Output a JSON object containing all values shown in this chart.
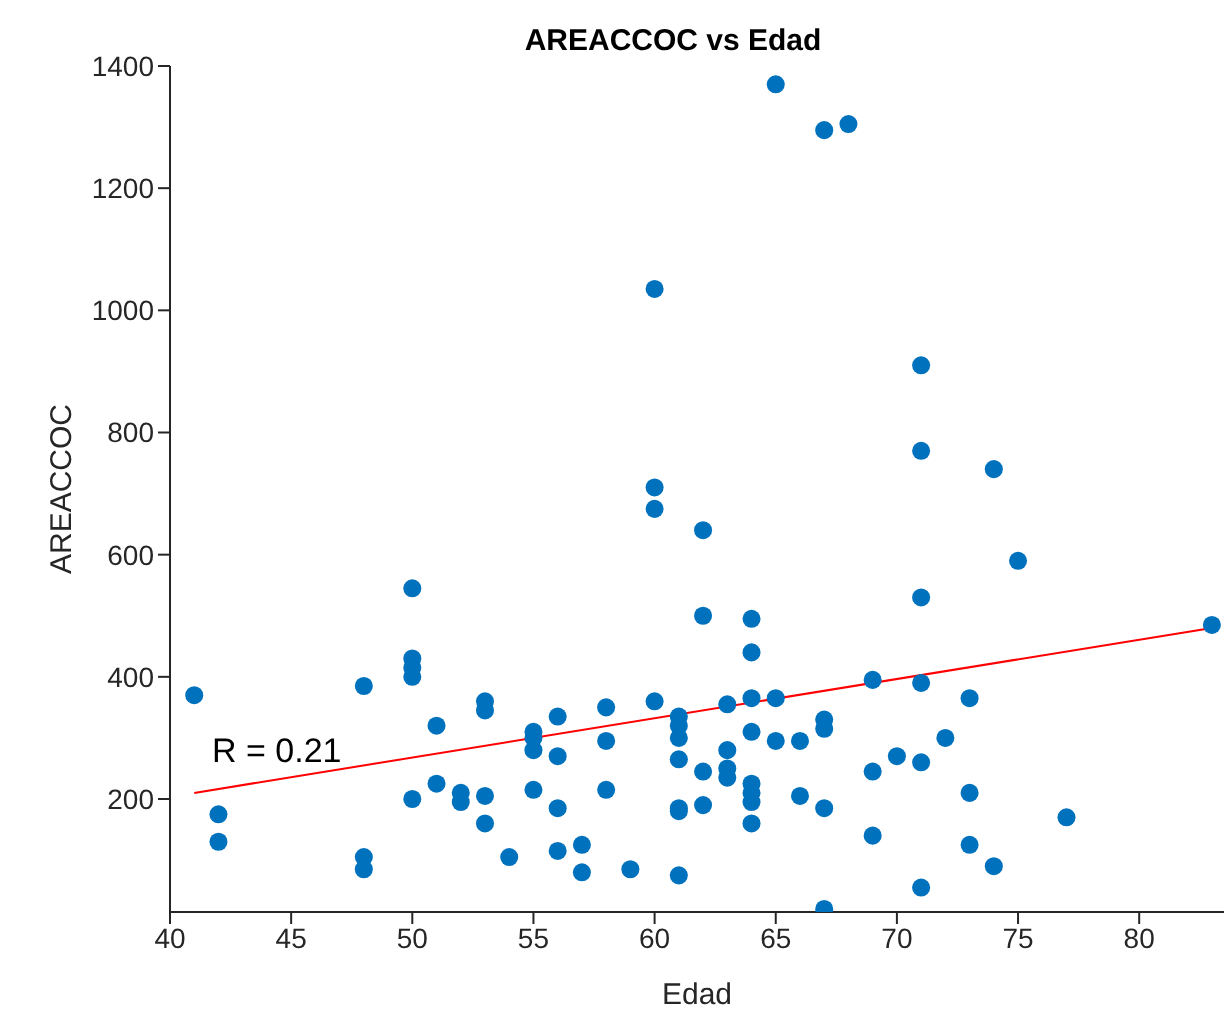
{
  "chart_data": {
    "type": "scatter",
    "title": "AREACCOC vs Edad",
    "xlabel": "Edad",
    "ylabel": "AREACCOC",
    "xlim": [
      40,
      83.5
    ],
    "xticks": [
      40,
      45,
      50,
      55,
      60,
      65,
      70,
      75,
      80
    ],
    "ylim": [
      15,
      1400
    ],
    "yticks": [
      200,
      400,
      600,
      800,
      1000,
      1200,
      1400
    ],
    "annotations": [
      "R = 0.21"
    ],
    "series": [
      {
        "color": "#0072bd",
        "marker": "circle",
        "x": [
          41,
          42,
          42,
          48,
          48,
          48,
          50,
          50,
          50,
          50,
          50,
          51,
          51,
          52,
          52,
          53,
          53,
          53,
          53,
          54,
          55,
          55,
          55,
          55,
          56,
          56,
          56,
          56,
          57,
          57,
          58,
          58,
          58,
          59,
          60,
          60,
          60,
          60,
          61,
          61,
          61,
          61,
          61,
          61,
          61,
          62,
          62,
          62,
          62,
          63,
          63,
          63,
          63,
          64,
          64,
          64,
          64,
          64,
          64,
          64,
          64,
          65,
          65,
          65,
          66,
          66,
          67,
          67,
          67,
          67,
          67,
          68,
          69,
          69,
          69,
          70,
          71,
          71,
          71,
          71,
          71,
          71,
          72,
          73,
          73,
          73,
          74,
          74,
          75,
          77,
          83
        ],
        "values": [
          370,
          175,
          130,
          385,
          105,
          85,
          545,
          430,
          415,
          400,
          200,
          320,
          225,
          210,
          195,
          360,
          345,
          205,
          160,
          105,
          310,
          300,
          280,
          215,
          335,
          270,
          185,
          115,
          125,
          80,
          350,
          295,
          215,
          85,
          1035,
          710,
          675,
          360,
          335,
          320,
          300,
          265,
          185,
          180,
          75,
          640,
          500,
          245,
          190,
          355,
          280,
          250,
          235,
          495,
          440,
          365,
          310,
          225,
          210,
          195,
          160,
          1370,
          365,
          295,
          295,
          205,
          1295,
          330,
          315,
          185,
          20,
          1305,
          395,
          245,
          140,
          270,
          910,
          770,
          530,
          390,
          260,
          55,
          300,
          365,
          210,
          125,
          740,
          90,
          590,
          170,
          485
        ]
      },
      {
        "type": "line",
        "color": "#ff0000",
        "marker": "none",
        "x": [
          41,
          83
        ],
        "values": [
          210,
          480
        ]
      }
    ]
  }
}
